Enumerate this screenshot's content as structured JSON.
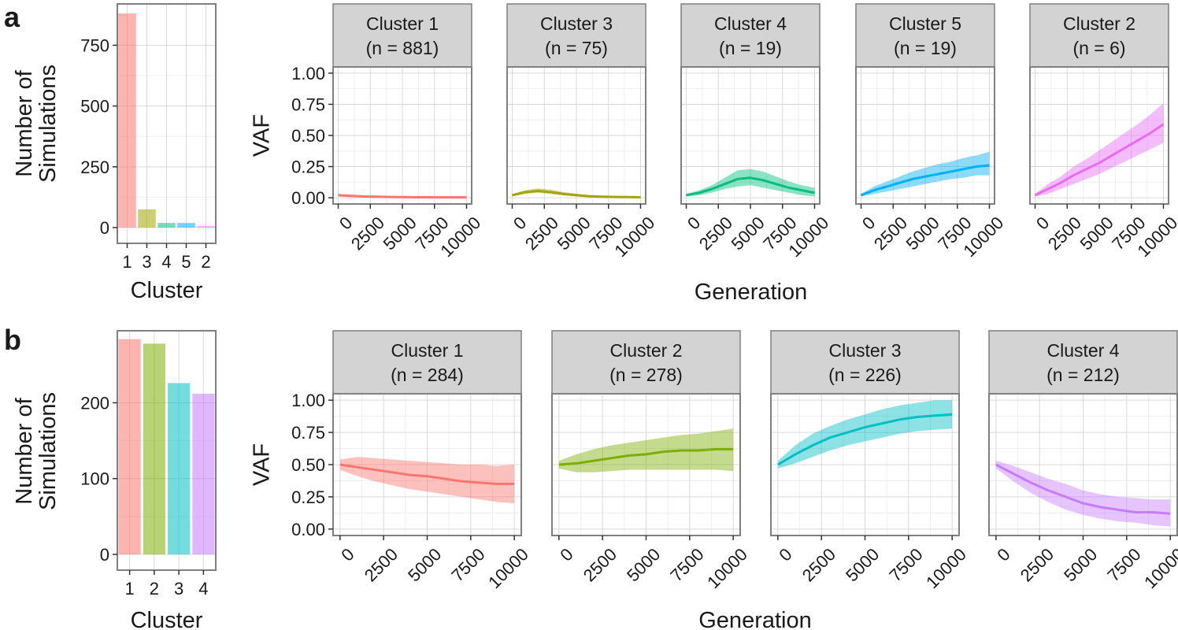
{
  "panels": [
    {
      "letter": "a",
      "bar": {
        "ylabel_lines": [
          "Number of",
          "Simulations"
        ],
        "xlabel": "Cluster",
        "yticks": [
          0,
          250,
          500,
          750
        ],
        "ylim": [
          0,
          920
        ],
        "categories": [
          "1",
          "3",
          "4",
          "5",
          "2"
        ],
        "values": [
          881,
          75,
          19,
          19,
          6
        ],
        "colors": [
          "#F8766D",
          "#A3A500",
          "#00BF7D",
          "#00B0F6",
          "#E76BF3"
        ]
      },
      "facets": {
        "ylabel": "VAF",
        "xlabel": "Generation",
        "xticks": [
          "0",
          "2500",
          "5000",
          "7500",
          "10000"
        ],
        "yticks": [
          "0.00",
          "0.25",
          "0.50",
          "0.75",
          "1.00"
        ],
        "xlim": [
          -400,
          10400
        ],
        "ylim": [
          -0.05,
          1.05
        ],
        "panels": [
          {
            "title": "Cluster 1",
            "n": "(n = 881)",
            "color": "#F8766D"
          },
          {
            "title": "Cluster 3",
            "n": "(n = 75)",
            "color": "#A3A500"
          },
          {
            "title": "Cluster 4",
            "n": "(n = 19)",
            "color": "#00BF7D"
          },
          {
            "title": "Cluster 5",
            "n": "(n = 19)",
            "color": "#00B0F6"
          },
          {
            "title": "Cluster 2",
            "n": "(n = 6)",
            "color": "#E76BF3"
          }
        ]
      }
    },
    {
      "letter": "b",
      "bar": {
        "ylabel_lines": [
          "Number of",
          "Simulations"
        ],
        "xlabel": "Cluster",
        "yticks": [
          0,
          100,
          200
        ],
        "ylim": [
          0,
          295
        ],
        "categories": [
          "1",
          "2",
          "3",
          "4"
        ],
        "values": [
          284,
          278,
          226,
          212
        ],
        "colors": [
          "#F8766D",
          "#7CAE00",
          "#00BFC4",
          "#C77CFF"
        ]
      },
      "facets": {
        "ylabel": "VAF",
        "xlabel": "Generation",
        "xticks": [
          "0",
          "2500",
          "5000",
          "7500",
          "10000"
        ],
        "yticks": [
          "0.00",
          "0.25",
          "0.50",
          "0.75",
          "1.00"
        ],
        "xlim": [
          -400,
          10400
        ],
        "ylim": [
          -0.05,
          1.05
        ],
        "panels": [
          {
            "title": "Cluster 1",
            "n": "(n = 284)",
            "color": "#F8766D"
          },
          {
            "title": "Cluster 2",
            "n": "(n = 278)",
            "color": "#7CAE00"
          },
          {
            "title": "Cluster 3",
            "n": "(n = 226)",
            "color": "#00BFC4"
          },
          {
            "title": "Cluster 4",
            "n": "(n = 212)",
            "color": "#C77CFF"
          }
        ]
      }
    }
  ],
  "chart_data": [
    {
      "type": "bar",
      "categories": [
        "1",
        "3",
        "4",
        "5",
        "2"
      ],
      "values": [
        881,
        75,
        19,
        19,
        6
      ],
      "xlabel": "Cluster",
      "ylabel": "Number of Simulations",
      "ylim": [
        0,
        920
      ],
      "grid": true
    },
    {
      "type": "area",
      "xlabel": "Generation",
      "ylabel": "VAF",
      "xlim": [
        0,
        10000
      ],
      "ylim": [
        0,
        1
      ],
      "x": [
        0,
        1000,
        2000,
        3000,
        4000,
        5000,
        6000,
        7000,
        8000,
        9000,
        10000
      ],
      "series": [
        {
          "name": "Cluster 1 (n = 881)",
          "mean": [
            0.02,
            0.015,
            0.01,
            0.008,
            0.006,
            0.005,
            0.004,
            0.004,
            0.003,
            0.003,
            0.003
          ],
          "lower": [
            0.01,
            0.008,
            0.005,
            0.004,
            0.003,
            0.002,
            0.002,
            0.002,
            0.001,
            0.001,
            0.001
          ],
          "upper": [
            0.03,
            0.025,
            0.02,
            0.015,
            0.012,
            0.01,
            0.008,
            0.007,
            0.006,
            0.006,
            0.006
          ]
        },
        {
          "name": "Cluster 3 (n = 75)",
          "mean": [
            0.02,
            0.045,
            0.055,
            0.045,
            0.03,
            0.02,
            0.012,
            0.008,
            0.006,
            0.005,
            0.004
          ],
          "lower": [
            0.01,
            0.03,
            0.04,
            0.03,
            0.018,
            0.01,
            0.005,
            0.003,
            0.002,
            0.001,
            0.001
          ],
          "upper": [
            0.03,
            0.06,
            0.075,
            0.065,
            0.045,
            0.032,
            0.022,
            0.016,
            0.012,
            0.01,
            0.01
          ]
        },
        {
          "name": "Cluster 4 (n = 19)",
          "mean": [
            0.02,
            0.04,
            0.07,
            0.11,
            0.15,
            0.16,
            0.14,
            0.11,
            0.08,
            0.06,
            0.04
          ],
          "lower": [
            0.01,
            0.02,
            0.04,
            0.07,
            0.09,
            0.1,
            0.08,
            0.06,
            0.04,
            0.02,
            0.01
          ],
          "upper": [
            0.03,
            0.06,
            0.1,
            0.16,
            0.22,
            0.23,
            0.21,
            0.17,
            0.13,
            0.1,
            0.08
          ]
        },
        {
          "name": "Cluster 5 (n = 19)",
          "mean": [
            0.02,
            0.06,
            0.09,
            0.12,
            0.15,
            0.17,
            0.19,
            0.21,
            0.23,
            0.25,
            0.26
          ],
          "lower": [
            0.01,
            0.03,
            0.05,
            0.07,
            0.09,
            0.11,
            0.13,
            0.15,
            0.16,
            0.18,
            0.18
          ],
          "upper": [
            0.03,
            0.09,
            0.13,
            0.17,
            0.21,
            0.24,
            0.27,
            0.29,
            0.32,
            0.34,
            0.37
          ]
        },
        {
          "name": "Cluster 2 (n = 6)",
          "mean": [
            0.02,
            0.07,
            0.12,
            0.18,
            0.23,
            0.28,
            0.34,
            0.4,
            0.46,
            0.52,
            0.59
          ],
          "lower": [
            0.01,
            0.03,
            0.07,
            0.11,
            0.15,
            0.19,
            0.24,
            0.29,
            0.34,
            0.39,
            0.44
          ],
          "upper": [
            0.03,
            0.11,
            0.17,
            0.25,
            0.31,
            0.38,
            0.45,
            0.52,
            0.59,
            0.67,
            0.76
          ]
        }
      ]
    },
    {
      "type": "bar",
      "categories": [
        "1",
        "2",
        "3",
        "4"
      ],
      "values": [
        284,
        278,
        226,
        212
      ],
      "xlabel": "Cluster",
      "ylabel": "Number of Simulations",
      "ylim": [
        0,
        295
      ],
      "grid": true
    },
    {
      "type": "area",
      "xlabel": "Generation",
      "ylabel": "VAF",
      "xlim": [
        0,
        10000
      ],
      "ylim": [
        0,
        1
      ],
      "x": [
        0,
        1000,
        2000,
        3000,
        4000,
        5000,
        6000,
        7000,
        8000,
        9000,
        10000
      ],
      "series": [
        {
          "name": "Cluster 1 (n = 284)",
          "mean": [
            0.5,
            0.48,
            0.46,
            0.44,
            0.42,
            0.41,
            0.39,
            0.37,
            0.36,
            0.35,
            0.35
          ],
          "lower": [
            0.46,
            0.41,
            0.37,
            0.34,
            0.31,
            0.29,
            0.27,
            0.25,
            0.23,
            0.21,
            0.2
          ],
          "upper": [
            0.54,
            0.56,
            0.55,
            0.54,
            0.53,
            0.52,
            0.51,
            0.5,
            0.5,
            0.49,
            0.5
          ]
        },
        {
          "name": "Cluster 2 (n = 278)",
          "mean": [
            0.5,
            0.51,
            0.53,
            0.55,
            0.57,
            0.58,
            0.6,
            0.61,
            0.61,
            0.62,
            0.62
          ],
          "lower": [
            0.47,
            0.44,
            0.44,
            0.45,
            0.46,
            0.46,
            0.46,
            0.46,
            0.46,
            0.46,
            0.45
          ],
          "upper": [
            0.53,
            0.58,
            0.62,
            0.65,
            0.67,
            0.69,
            0.71,
            0.73,
            0.74,
            0.76,
            0.78
          ]
        },
        {
          "name": "Cluster 3 (n = 226)",
          "mean": [
            0.5,
            0.58,
            0.65,
            0.71,
            0.75,
            0.79,
            0.82,
            0.85,
            0.87,
            0.88,
            0.89
          ],
          "lower": [
            0.47,
            0.51,
            0.56,
            0.61,
            0.65,
            0.68,
            0.71,
            0.74,
            0.76,
            0.77,
            0.78
          ],
          "upper": [
            0.53,
            0.65,
            0.74,
            0.8,
            0.85,
            0.89,
            0.93,
            0.96,
            0.98,
            1.0,
            1.0
          ]
        },
        {
          "name": "Cluster 4 (n = 212)",
          "mean": [
            0.5,
            0.43,
            0.36,
            0.3,
            0.25,
            0.2,
            0.17,
            0.15,
            0.13,
            0.13,
            0.12
          ],
          "lower": [
            0.47,
            0.37,
            0.28,
            0.21,
            0.15,
            0.11,
            0.08,
            0.06,
            0.05,
            0.03,
            0.02
          ],
          "upper": [
            0.53,
            0.49,
            0.44,
            0.39,
            0.35,
            0.3,
            0.27,
            0.25,
            0.24,
            0.23,
            0.23
          ]
        }
      ]
    }
  ]
}
